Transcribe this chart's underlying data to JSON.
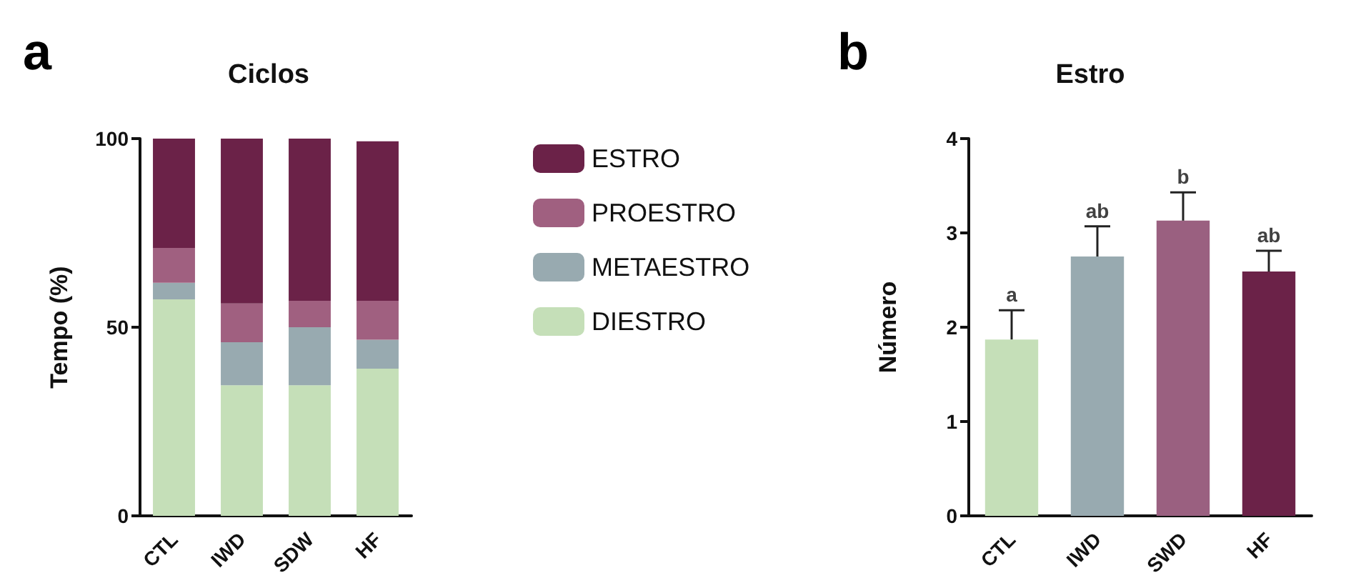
{
  "chart_data": [
    {
      "type": "bar",
      "title": "Ciclos",
      "ylabel": "Tempo (%)",
      "stacked": true,
      "categories": [
        "CTL",
        "IWD",
        "SDW",
        "HF"
      ],
      "ylim": [
        0,
        100
      ],
      "yticks": [
        0,
        50,
        100
      ],
      "grid": false,
      "legend": "right",
      "annotations": [
        "a"
      ],
      "series": [
        {
          "name": "DIESTRO",
          "color": "#c5dfb8",
          "values": [
            57.4,
            34.6,
            34.6,
            39
          ]
        },
        {
          "name": "METAESTRO",
          "color": "#98aab0",
          "values": [
            4.4,
            11.4,
            15.4,
            7.7
          ]
        },
        {
          "name": "PROESTRO",
          "color": "#a06080",
          "values": [
            9.2,
            10.3,
            7,
            10.3
          ]
        },
        {
          "name": "ESTRO",
          "color": "#6b2248",
          "values": [
            29,
            43.7,
            43,
            42.3
          ]
        }
      ]
    },
    {
      "type": "bar",
      "title": "Estro",
      "ylabel": "Número",
      "categories": [
        "CTL",
        "IWD",
        "SWD",
        "HF"
      ],
      "ylim": [
        0,
        4
      ],
      "yticks": [
        0,
        1,
        2,
        3,
        4
      ],
      "grid": false,
      "legend": false,
      "values": [
        1.87,
        2.75,
        3.13,
        2.59
      ],
      "colors": [
        "#c5dfb8",
        "#98aab0",
        "#9a6080",
        "#6b2248"
      ],
      "errors": [
        [
          1.87,
          2.18
        ],
        [
          2.75,
          3.07
        ],
        [
          3.13,
          3.43
        ],
        [
          2.59,
          2.81
        ]
      ],
      "annotations": [
        "b",
        {
          "text": "a",
          "x": "CTL",
          "y": 2.18
        },
        {
          "text": "ab",
          "x": "IWD",
          "y": 3.07
        },
        {
          "text": "b",
          "x": "SWD",
          "y": 3.43
        },
        {
          "text": "ab",
          "x": "HF",
          "y": 2.81
        }
      ]
    }
  ]
}
